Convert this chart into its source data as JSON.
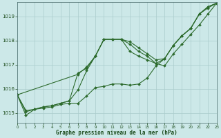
{
  "title": "",
  "xlabel": "Graphe pression niveau de la mer (hPa)",
  "ylabel": "",
  "bg_color": "#cce8e8",
  "grid_color": "#aacccc",
  "line_color": "#2d6b2d",
  "text_color": "#1a4a1a",
  "label_color": "#1a4a1a",
  "xlim": [
    0,
    23
  ],
  "ylim": [
    1014.6,
    1019.6
  ],
  "yticks": [
    1015,
    1016,
    1017,
    1018,
    1019
  ],
  "xticks": [
    0,
    1,
    2,
    3,
    4,
    5,
    6,
    7,
    8,
    9,
    10,
    11,
    12,
    13,
    14,
    15,
    16,
    17,
    18,
    19,
    20,
    21,
    22,
    23
  ],
  "line1_x": [
    0,
    1,
    2,
    3,
    4,
    5,
    6,
    7,
    8,
    9,
    10,
    11,
    12,
    13,
    14,
    15,
    16,
    17,
    18,
    19,
    20,
    21,
    22,
    23
  ],
  "line1_y": [
    1015.75,
    1014.9,
    1015.15,
    1015.2,
    1015.25,
    1015.35,
    1015.4,
    1015.4,
    1015.7,
    1016.05,
    1016.1,
    1016.2,
    1016.2,
    1016.15,
    1016.2,
    1016.45,
    1016.95,
    1017.25,
    1017.8,
    1018.2,
    1018.5,
    1019.1,
    1019.35,
    1019.55
  ],
  "line2_x": [
    0,
    1,
    2,
    3,
    4,
    5,
    6,
    7,
    8,
    9,
    10,
    11,
    12,
    13,
    14,
    15,
    16,
    17,
    18,
    19,
    20,
    21,
    22,
    23
  ],
  "line2_y": [
    1015.75,
    1015.1,
    1015.15,
    1015.25,
    1015.3,
    1015.4,
    1015.5,
    1016.65,
    1016.85,
    1017.35,
    1018.05,
    1018.05,
    1018.05,
    1017.55,
    1017.35,
    1017.2,
    1017.05,
    1017.25,
    1017.8,
    1018.2,
    1018.5,
    1019.1,
    1019.4,
    1019.55
  ],
  "line3_x": [
    0,
    1,
    2,
    3,
    4,
    5,
    6,
    7,
    8,
    9,
    10,
    11,
    12,
    13,
    14,
    15,
    16,
    17,
    18,
    19,
    20,
    21,
    22,
    23
  ],
  "line3_y": [
    1015.75,
    1015.05,
    1015.15,
    1015.25,
    1015.3,
    1015.4,
    1015.5,
    1015.95,
    1016.75,
    1017.35,
    1018.05,
    1018.05,
    1018.05,
    1017.85,
    1017.55,
    1017.35,
    1017.05,
    1016.95,
    1017.45,
    1017.85,
    1018.25,
    1018.65,
    1019.1,
    1019.55
  ],
  "line4_x": [
    0,
    7,
    8,
    9,
    10,
    11,
    12,
    13,
    14,
    15,
    16,
    17,
    18,
    19,
    20,
    21,
    22,
    23
  ],
  "line4_y": [
    1015.75,
    1016.6,
    1016.9,
    1017.35,
    1018.05,
    1018.05,
    1018.05,
    1017.95,
    1017.7,
    1017.45,
    1017.2,
    1017.25,
    1017.8,
    1018.2,
    1018.5,
    1019.1,
    1019.4,
    1019.55
  ]
}
